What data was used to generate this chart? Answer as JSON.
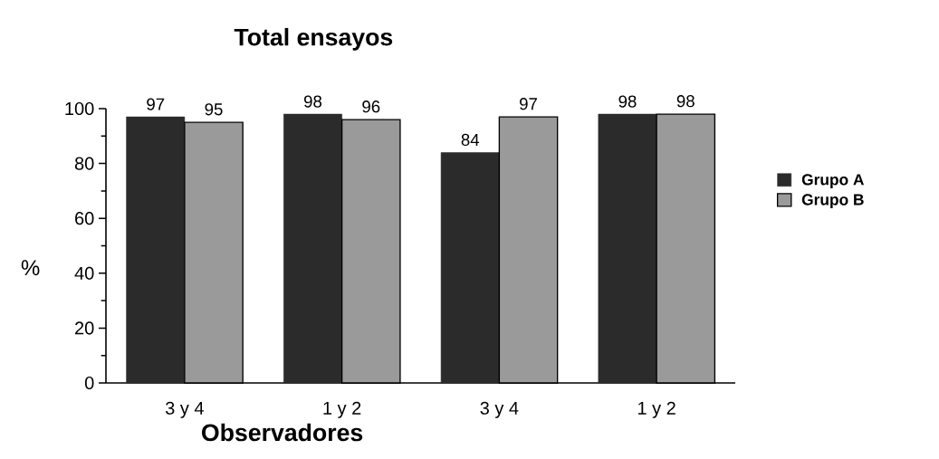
{
  "chart_data": {
    "type": "bar",
    "title": "Total ensayos",
    "xlabel": "Observadores",
    "ylabel": "%",
    "categories": [
      "3 y 4",
      "1 y 2",
      "3 y 4",
      "1 y 2"
    ],
    "series": [
      {
        "name": "Grupo A",
        "color": "#2b2b2b",
        "values": [
          97,
          98,
          84,
          98
        ]
      },
      {
        "name": "Grupo B",
        "color": "#9a9a9a",
        "values": [
          95,
          96,
          97,
          98
        ]
      }
    ],
    "ylim": [
      0,
      100
    ],
    "yticks": [
      0,
      20,
      40,
      60,
      80,
      100
    ],
    "data_labels": true,
    "legend": "right"
  }
}
